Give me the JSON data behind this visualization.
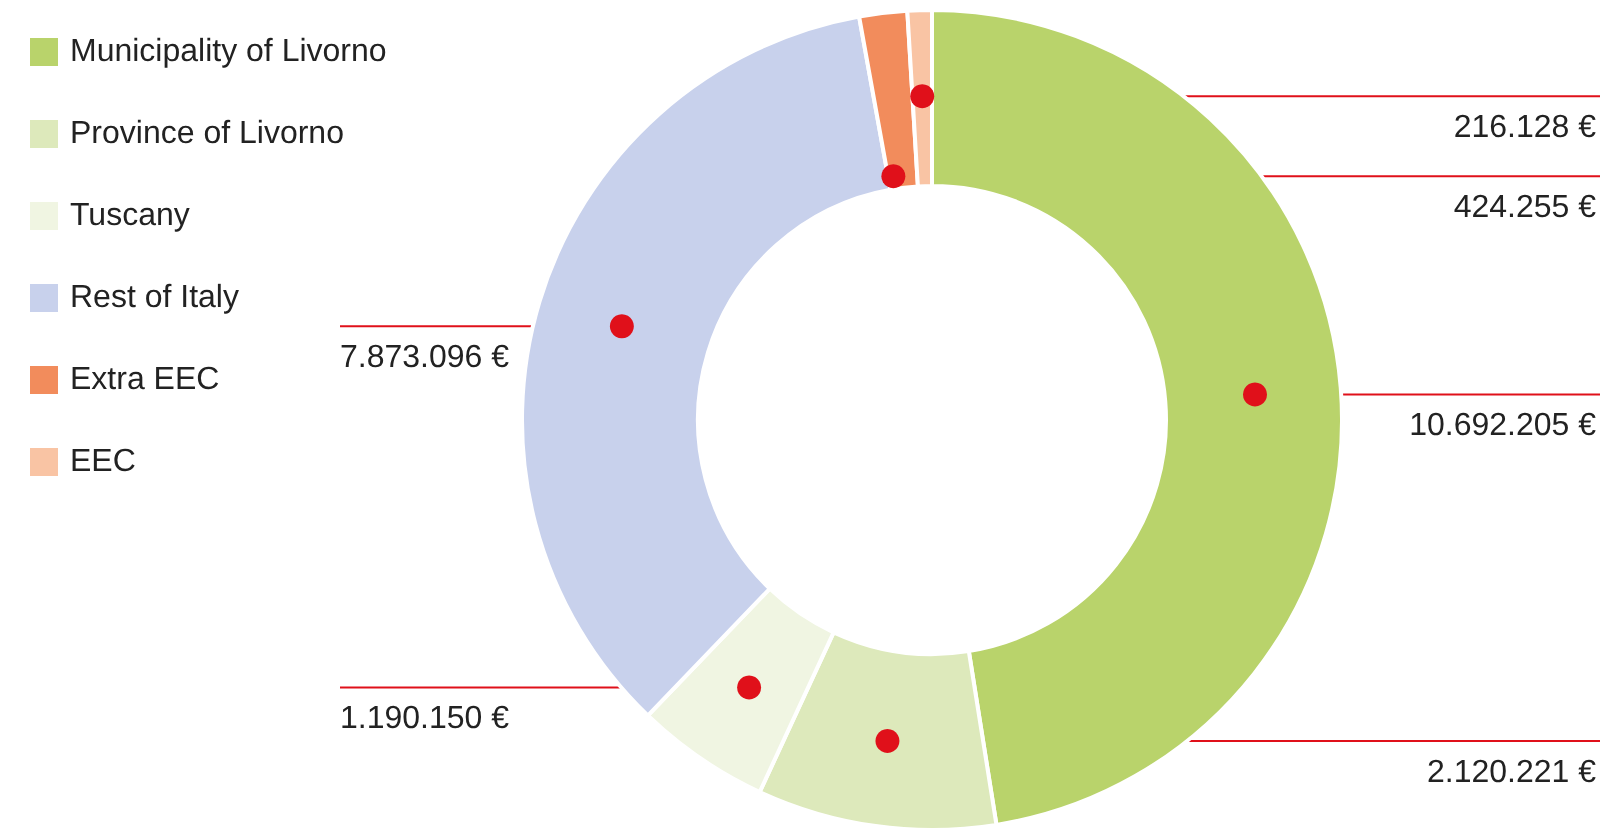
{
  "chart_data": {
    "type": "donut",
    "categories": [
      "Municipality of Livorno",
      "Province of Livorno",
      "Tuscany",
      "Rest of Italy",
      "Extra EEC",
      "EEC"
    ],
    "values": [
      10692205,
      2120221,
      1190150,
      7873096,
      424255,
      216128
    ],
    "value_labels": [
      "10.692.205 €",
      "2.120.221 €",
      "1.190.150 €",
      "7.873.096 €",
      "424.255 €",
      "216.128 €"
    ],
    "colors": [
      "#b9d36b",
      "#dde9bb",
      "#f0f5e2",
      "#c8d1ec",
      "#f28c5c",
      "#f9c4a4"
    ],
    "legend": "top left"
  }
}
